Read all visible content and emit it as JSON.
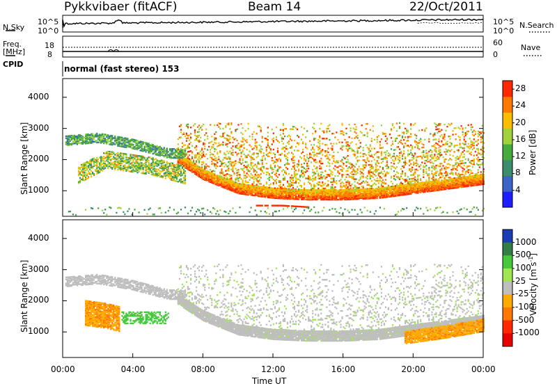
{
  "header": {
    "station": "Pykkvibaer (fitACF)",
    "beam": "Beam 14",
    "date": "22/Oct/2011"
  },
  "strips": {
    "nsky_label": "N.Sky",
    "nsky_ticks": [
      "10^5",
      "10^0"
    ],
    "nsearch_label": "N.Search",
    "nsearch_ticks": [
      "10^5",
      "10^0"
    ],
    "freq_label_1": "Freq.",
    "freq_label_2": "[MHz]",
    "freq_ticks": [
      "18",
      "8"
    ],
    "nave_label": "Nave",
    "nave_ticks": [
      "60",
      "0"
    ],
    "cpid_label": "CPID",
    "cpid_text": "normal (fast stereo) 153"
  },
  "chart_data": [
    {
      "type": "heatmap",
      "panel": "power",
      "ylabel": "Slant Range [km]",
      "xlabel": "",
      "ylim": [
        180,
        4600
      ],
      "yticks": [
        1000,
        2000,
        3000,
        4000
      ],
      "xlim_hours": [
        0,
        24
      ],
      "colorbar": {
        "label": "Power [dB]",
        "ticks": [
          4,
          8,
          12,
          16,
          20,
          24,
          28
        ],
        "range": [
          0,
          30
        ],
        "colors": [
          "#1e1eff",
          "#3c64c8",
          "#3c8c6e",
          "#46aa3c",
          "#a0d23c",
          "#fabe00",
          "#ff7800",
          "#ff2800"
        ]
      },
      "features": [
        {
          "name": "main-arc",
          "hours": [
            6.5,
            8,
            10,
            12,
            14,
            16,
            18,
            20,
            22,
            24
          ],
          "range_km": [
            2000,
            1450,
            1000,
            850,
            800,
            800,
            850,
            1000,
            1150,
            1300
          ],
          "power_db": 26
        },
        {
          "name": "upper-echoes",
          "hours": [
            0,
            2,
            4,
            6
          ],
          "range_km": [
            2600,
            2700,
            2500,
            2200
          ],
          "power_db": 12
        },
        {
          "name": "early-band",
          "hours": [
            0.8,
            2.5,
            5,
            7
          ],
          "range_km": [
            1500,
            2000,
            1800,
            1500
          ],
          "power_db": 16
        },
        {
          "name": "low-near-range",
          "hours": [
            11,
            12.5,
            14
          ],
          "range_km": [
            550,
            550,
            500
          ],
          "power_db": 28
        }
      ]
    },
    {
      "type": "heatmap",
      "panel": "velocity",
      "ylabel": "Slant Range [km]",
      "xlabel": "Time UT",
      "ylim": [
        180,
        4600
      ],
      "yticks": [
        1000,
        2000,
        3000,
        4000
      ],
      "xticks": [
        "00:00",
        "04:00",
        "08:00",
        "12:00",
        "16:00",
        "20:00",
        "00:00"
      ],
      "xlim_hours": [
        0,
        24
      ],
      "colorbar": {
        "label": "Velocity [m s",
        "label_sup": "-1",
        "label_end": "]",
        "ticks": [
          "1000",
          "500",
          "100",
          "25",
          "-25",
          "-100",
          "-500",
          "-1000"
        ],
        "colors": [
          "#1a3cb4",
          "#327e46",
          "#46c83c",
          "#a0e650",
          "#bebebe",
          "#ffaa00",
          "#ff7800",
          "#ff2800",
          "#e60000"
        ]
      },
      "features": [
        {
          "name": "ground-scatter-arc",
          "hours": [
            6.5,
            10,
            14,
            18,
            22,
            24
          ],
          "range_km": [
            2000,
            1000,
            800,
            850,
            1150,
            1300
          ],
          "velocity": 0
        },
        {
          "name": "early-negative",
          "hours": [
            1.2,
            2.5,
            3.2
          ],
          "range_km": [
            1700,
            1600,
            1500
          ],
          "velocity": -250
        },
        {
          "name": "late-negative",
          "hours": [
            19.5,
            22,
            24
          ],
          "range_km": [
            800,
            1000,
            1200
          ],
          "velocity": -300
        }
      ]
    }
  ]
}
